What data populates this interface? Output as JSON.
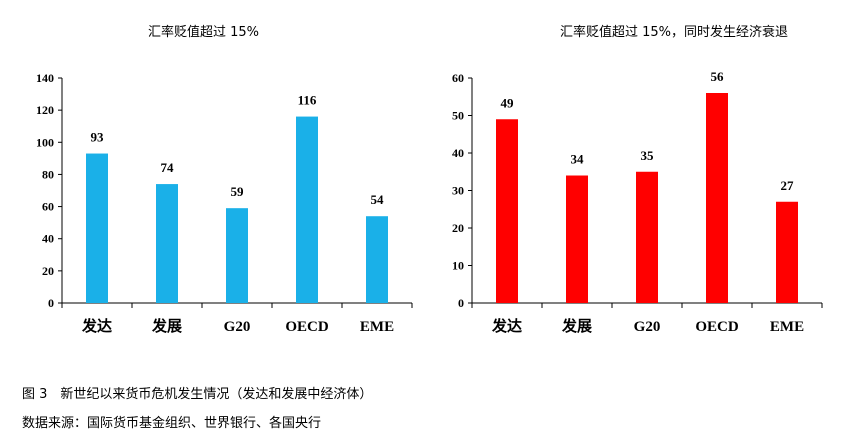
{
  "chart_data": [
    {
      "type": "bar",
      "title": "汇率贬值超过 15%",
      "categories": [
        "发达",
        "发展",
        "G20",
        "OECD",
        "EME"
      ],
      "values": [
        93,
        74,
        59,
        116,
        54
      ],
      "ylim": [
        0,
        140
      ],
      "yticks": [
        0,
        20,
        40,
        60,
        80,
        100,
        120,
        140
      ],
      "color": "#1AB0E8",
      "grid": false
    },
    {
      "type": "bar",
      "title": "汇率贬值超过 15%，同时发生经济衰退",
      "categories": [
        "发达",
        "发展",
        "G20",
        "OECD",
        "EME"
      ],
      "values": [
        49,
        34,
        35,
        56,
        27
      ],
      "ylim": [
        0,
        60
      ],
      "yticks": [
        0,
        10,
        20,
        30,
        40,
        50,
        60
      ],
      "color": "#FF0000",
      "grid": false
    }
  ],
  "captions": {
    "figure": "图 3　新世纪以来货币危机发生情况（发达和发展中经济体）",
    "source": "数据来源：国际货币基金组织、世界银行、各国央行"
  }
}
